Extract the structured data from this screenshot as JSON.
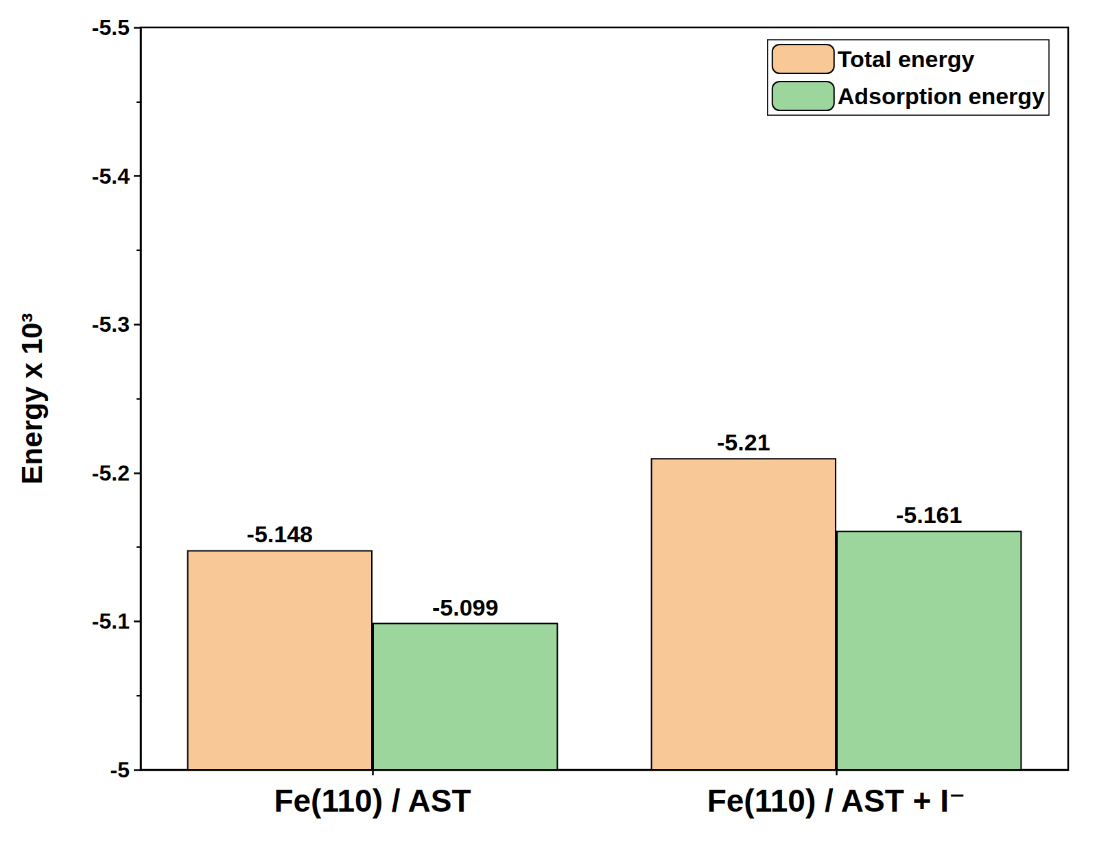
{
  "chart_data": {
    "type": "bar",
    "y_label": "Energy x 10³",
    "categories": [
      "Fe(110) / AST",
      "Fe(110) / AST + I⁻"
    ],
    "series": [
      {
        "name": "Total energy",
        "color": "#f9c897",
        "values": [
          -5.148,
          -5.21
        ]
      },
      {
        "name": "Adsorption energy",
        "color": "#9dd69d",
        "values": [
          -5.099,
          -5.161
        ]
      }
    ],
    "ylim": [
      -5,
      -5.5
    ],
    "yticks": [
      -5.5,
      -5.4,
      -5.3,
      -5.2,
      -5.1,
      -5
    ],
    "grid": false,
    "legend": "top-right",
    "data_labels": true
  }
}
